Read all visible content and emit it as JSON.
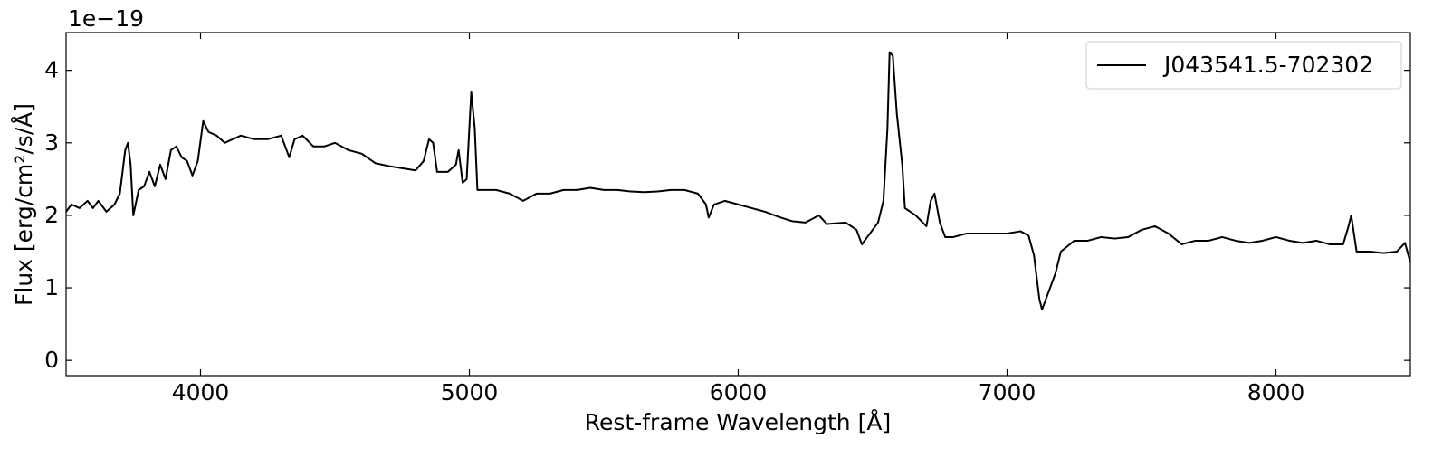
{
  "chart_data": {
    "type": "line",
    "x_label": "Rest-frame Wavelength [Å]",
    "y_label": "Flux [erg/cm²/s/Å]",
    "y_offset_label": "1e−19",
    "xlim": [
      3500,
      8500
    ],
    "ylim": [
      -0.21,
      4.52
    ],
    "xticks": [
      4000,
      5000,
      6000,
      7000,
      8000
    ],
    "yticks": [
      0,
      1,
      2,
      3,
      4
    ],
    "grid": false,
    "legend": "upper right",
    "x": [
      3500,
      3520,
      3550,
      3580,
      3600,
      3620,
      3650,
      3680,
      3700,
      3720,
      3730,
      3740,
      3750,
      3770,
      3790,
      3810,
      3830,
      3850,
      3870,
      3890,
      3910,
      3930,
      3950,
      3970,
      3990,
      4010,
      4030,
      4060,
      4090,
      4120,
      4150,
      4200,
      4250,
      4300,
      4330,
      4350,
      4380,
      4420,
      4460,
      4500,
      4550,
      4600,
      4650,
      4700,
      4750,
      4800,
      4830,
      4850,
      4865,
      4880,
      4920,
      4950,
      4960,
      4975,
      4990,
      5007,
      5020,
      5030,
      5100,
      5150,
      5200,
      5250,
      5300,
      5350,
      5400,
      5450,
      5500,
      5550,
      5600,
      5650,
      5700,
      5750,
      5800,
      5850,
      5880,
      5890,
      5910,
      5950,
      6000,
      6050,
      6100,
      6150,
      6200,
      6250,
      6300,
      6330,
      6400,
      6440,
      6460,
      6480,
      6520,
      6540,
      6555,
      6563,
      6575,
      6590,
      6610,
      6620,
      6660,
      6700,
      6716,
      6730,
      6750,
      6770,
      6800,
      6850,
      6900,
      6950,
      7000,
      7050,
      7080,
      7100,
      7120,
      7130,
      7150,
      7180,
      7200,
      7250,
      7300,
      7350,
      7400,
      7450,
      7500,
      7550,
      7600,
      7650,
      7700,
      7750,
      7800,
      7850,
      7900,
      7950,
      8000,
      8050,
      8100,
      8150,
      8200,
      8250,
      8270,
      8280,
      8300,
      8350,
      8400,
      8450,
      8480,
      8500
    ],
    "series": [
      {
        "name": "J043541.5-702302",
        "color": "#000000",
        "values": [
          2.05,
          2.15,
          2.1,
          2.2,
          2.1,
          2.2,
          2.05,
          2.15,
          2.3,
          2.9,
          3.0,
          2.7,
          2.0,
          2.35,
          2.4,
          2.6,
          2.4,
          2.7,
          2.5,
          2.9,
          2.95,
          2.8,
          2.75,
          2.55,
          2.75,
          3.3,
          3.15,
          3.1,
          3.0,
          3.05,
          3.1,
          3.05,
          3.05,
          3.1,
          2.8,
          3.05,
          3.1,
          2.95,
          2.95,
          3.0,
          2.9,
          2.85,
          2.72,
          2.68,
          2.65,
          2.62,
          2.75,
          3.05,
          3.0,
          2.6,
          2.6,
          2.7,
          2.9,
          2.45,
          2.5,
          3.7,
          3.2,
          2.35,
          2.35,
          2.3,
          2.2,
          2.3,
          2.3,
          2.35,
          2.35,
          2.38,
          2.35,
          2.35,
          2.33,
          2.32,
          2.33,
          2.35,
          2.35,
          2.3,
          2.15,
          1.97,
          2.15,
          2.2,
          2.15,
          2.1,
          2.05,
          1.98,
          1.92,
          1.9,
          2.0,
          1.88,
          1.9,
          1.8,
          1.6,
          1.7,
          1.9,
          2.2,
          3.2,
          4.25,
          4.2,
          3.4,
          2.7,
          2.1,
          2.0,
          1.85,
          2.2,
          2.3,
          1.9,
          1.7,
          1.7,
          1.75,
          1.75,
          1.75,
          1.75,
          1.78,
          1.72,
          1.45,
          0.85,
          0.7,
          0.9,
          1.2,
          1.5,
          1.65,
          1.65,
          1.7,
          1.68,
          1.7,
          1.8,
          1.85,
          1.75,
          1.6,
          1.65,
          1.65,
          1.7,
          1.65,
          1.62,
          1.65,
          1.7,
          1.65,
          1.62,
          1.65,
          1.6,
          1.6,
          1.85,
          2.0,
          1.5,
          1.5,
          1.48,
          1.5,
          1.62,
          1.35
        ]
      }
    ]
  }
}
